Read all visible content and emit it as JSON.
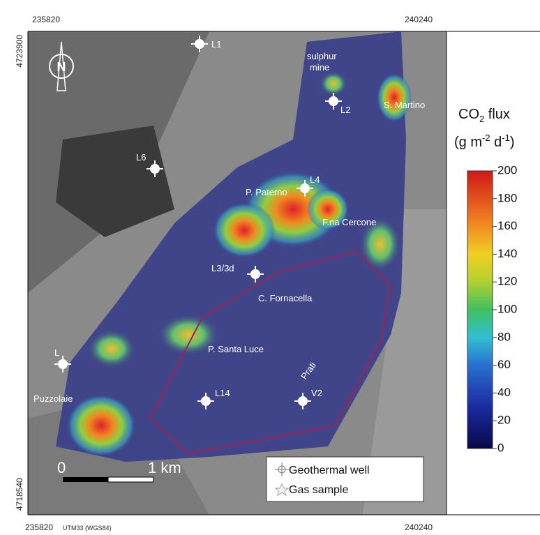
{
  "coordinates": {
    "top_left_x": 235820,
    "top_right_x": 240240,
    "left_top_y": 4723900,
    "left_bottom_y": 4718540,
    "bottom_left_x": 235820,
    "bottom_datum": "UTM33 (WGS84)",
    "bottom_right_x": 240240
  },
  "north": "N",
  "places": {
    "l1": "L1",
    "sulphur_line1": "sulphur",
    "sulphur_line2": "mine",
    "l2": "L2",
    "s_martino": "S. Martino",
    "l6": "L6",
    "l4": "L4",
    "p_paterno": "P. Paterno",
    "fna_cercone": "F.na Cercone",
    "l3": "L3/3d",
    "c_fornacella": "C. Fornacella",
    "l_left": "L",
    "p_santa_luce": "P. Santa Luce",
    "prati": "Prati",
    "puzzolaie": "Puzzolaie",
    "l14": "L14",
    "v2": "V2"
  },
  "scale_bar": {
    "start": "0",
    "end": "1 km"
  },
  "legend": {
    "well": "Geothermal well",
    "sample": "Gas sample"
  },
  "colorbar": {
    "title_main": "CO",
    "title_sub": "2",
    "title_rest": " flux",
    "unit_open": "(g m",
    "unit_exp1": "-2",
    "unit_mid": " d",
    "unit_exp2": "-1",
    "unit_close": ")",
    "lim": [
      0,
      200
    ],
    "ticks": [
      0,
      20,
      40,
      60,
      80,
      100,
      120,
      140,
      160,
      180,
      200
    ]
  }
}
